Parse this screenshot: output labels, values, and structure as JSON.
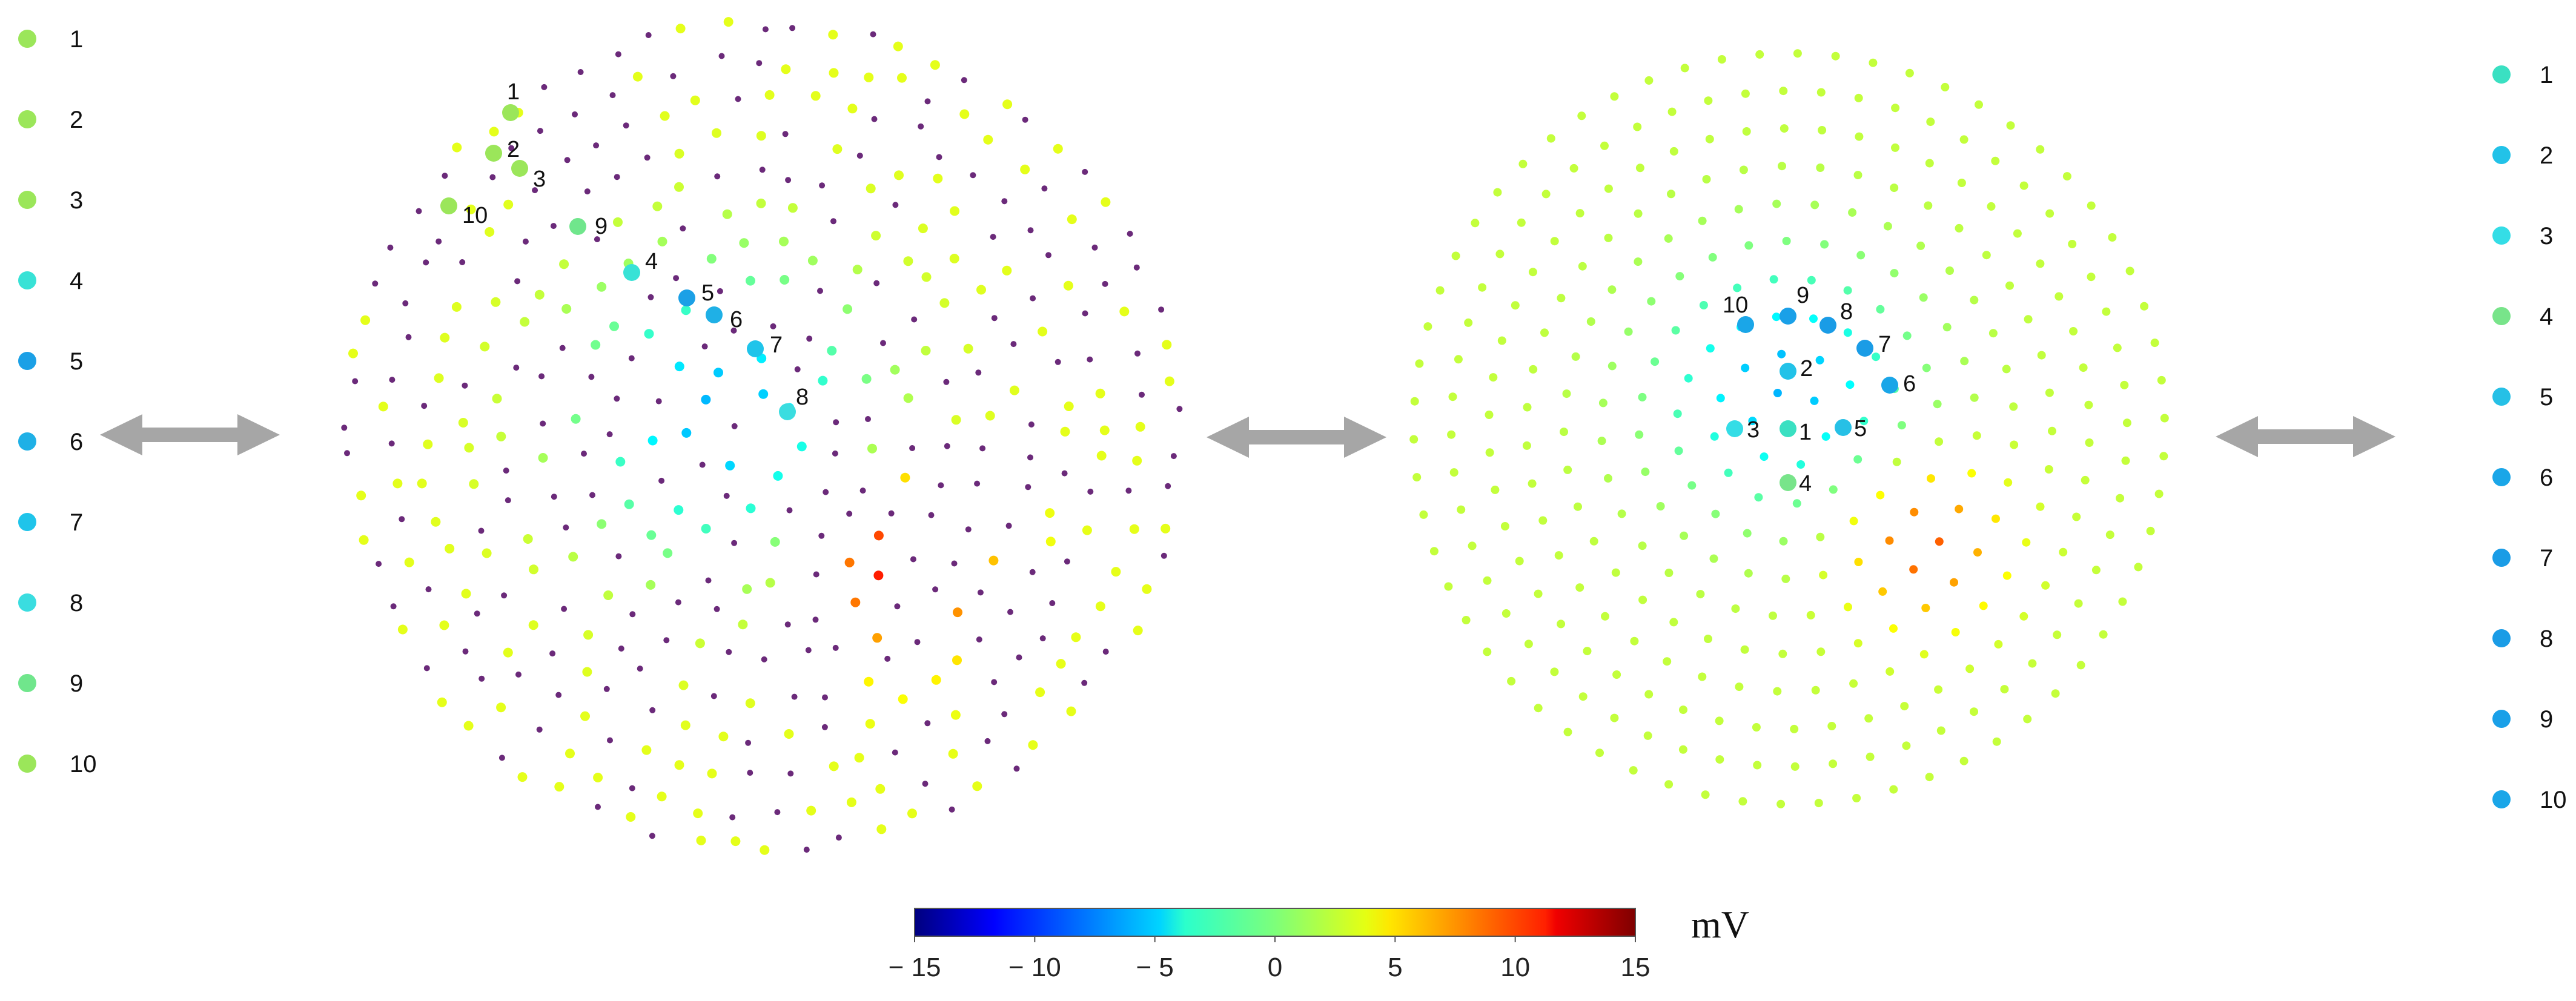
{
  "left_legend": {
    "items": [
      {
        "label": "1",
        "color": "#9be65a"
      },
      {
        "label": "2",
        "color": "#9be65a"
      },
      {
        "label": "3",
        "color": "#9be65a"
      },
      {
        "label": "4",
        "color": "#38e2d6"
      },
      {
        "label": "5",
        "color": "#1ba0e6"
      },
      {
        "label": "6",
        "color": "#1fb0e6"
      },
      {
        "label": "7",
        "color": "#1fc4ea"
      },
      {
        "label": "8",
        "color": "#3adde0"
      },
      {
        "label": "9",
        "color": "#70e68c"
      },
      {
        "label": "10",
        "color": "#9be65a"
      }
    ]
  },
  "right_legend": {
    "items": [
      {
        "label": "1",
        "color": "#3ae0c2"
      },
      {
        "label": "2",
        "color": "#22c2e8"
      },
      {
        "label": "3",
        "color": "#34dde6"
      },
      {
        "label": "4",
        "color": "#78e48a"
      },
      {
        "label": "5",
        "color": "#26c0e6"
      },
      {
        "label": "6",
        "color": "#1aa6e8"
      },
      {
        "label": "7",
        "color": "#1a9ce6"
      },
      {
        "label": "8",
        "color": "#1a9ce6"
      },
      {
        "label": "9",
        "color": "#1aa0e8"
      },
      {
        "label": "10",
        "color": "#1aa6e8"
      }
    ]
  },
  "left_map": {
    "marked": [
      {
        "label": "1",
        "color": "#9be65a"
      },
      {
        "label": "2",
        "color": "#9be65a"
      },
      {
        "label": "3",
        "color": "#9be65a"
      },
      {
        "label": "10",
        "color": "#9be65a"
      },
      {
        "label": "9",
        "color": "#70e68c"
      },
      {
        "label": "4",
        "color": "#38e2d6"
      },
      {
        "label": "5",
        "color": "#1ba0e6"
      },
      {
        "label": "6",
        "color": "#1fb0e6"
      },
      {
        "label": "7",
        "color": "#1fc4ea"
      },
      {
        "label": "8",
        "color": "#3adde0"
      }
    ]
  },
  "right_map": {
    "marked": [
      {
        "label": "10",
        "color": "#1aa6e8"
      },
      {
        "label": "9",
        "color": "#1aa0e8"
      },
      {
        "label": "8",
        "color": "#1a9ce6"
      },
      {
        "label": "7",
        "color": "#1a9ce6"
      },
      {
        "label": "6",
        "color": "#1aa6e8"
      },
      {
        "label": "2",
        "color": "#22c2e8"
      },
      {
        "label": "3",
        "color": "#34dde6"
      },
      {
        "label": "1",
        "color": "#3ae0c2"
      },
      {
        "label": "5",
        "color": "#26c0e6"
      },
      {
        "label": "4",
        "color": "#78e48a"
      }
    ]
  },
  "colorbar": {
    "min": -15,
    "max": 15,
    "ticks": [
      {
        "value": -15,
        "label": "− 15"
      },
      {
        "value": -10,
        "label": "− 10"
      },
      {
        "value": -5,
        "label": "− 5"
      },
      {
        "value": 0,
        "label": "0"
      },
      {
        "value": 5,
        "label": "5"
      },
      {
        "value": 10,
        "label": "10"
      },
      {
        "value": 15,
        "label": "15"
      }
    ],
    "unit": "mV",
    "colormap": "jet"
  },
  "arrows": {
    "color": "#a6a6a6",
    "icon": "double-headed-arrow-icon"
  },
  "sensor_color": "#6b2a7a"
}
